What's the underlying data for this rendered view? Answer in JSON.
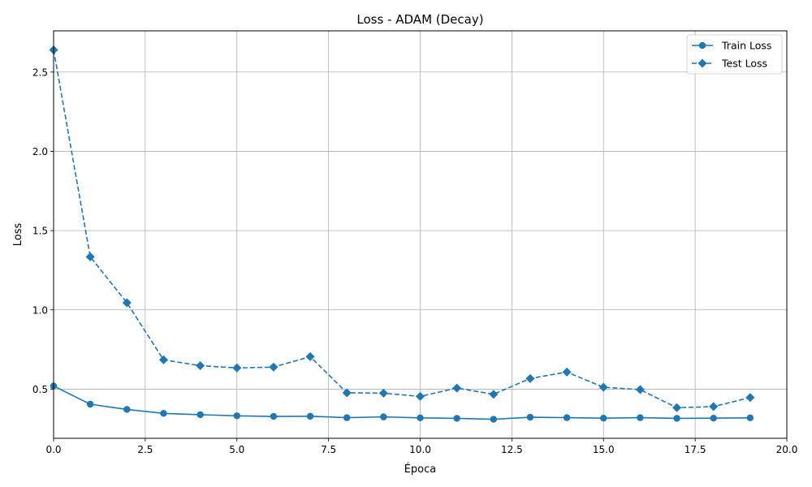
{
  "chart_data": {
    "type": "line",
    "title": "Loss - ADAM (Decay)",
    "xlabel": "Época",
    "ylabel": "Loss",
    "xlim": [
      0,
      20
    ],
    "ylim": [
      0.19,
      2.76
    ],
    "x_ticks": [
      "0.0",
      "2.5",
      "5.0",
      "7.5",
      "10.0",
      "12.5",
      "15.0",
      "17.5",
      "20.0"
    ],
    "y_ticks": [
      "0.5",
      "1.0",
      "1.5",
      "2.0",
      "2.5"
    ],
    "grid": true,
    "legend_position": "top-right",
    "x": [
      0,
      1,
      2,
      3,
      4,
      5,
      6,
      7,
      8,
      9,
      10,
      11,
      12,
      13,
      14,
      15,
      16,
      17,
      18,
      19
    ],
    "series": [
      {
        "name": "Train Loss",
        "line_style": "solid",
        "marker": "circle",
        "color": "#1f77b4",
        "values": [
          0.52,
          0.405,
          0.372,
          0.347,
          0.339,
          0.332,
          0.328,
          0.329,
          0.32,
          0.325,
          0.319,
          0.316,
          0.31,
          0.323,
          0.32,
          0.317,
          0.32,
          0.316,
          0.317,
          0.319
        ]
      },
      {
        "name": "Test Loss",
        "line_style": "dashed",
        "marker": "diamond",
        "color": "#1f77b4",
        "values": [
          2.64,
          1.335,
          1.045,
          0.685,
          0.648,
          0.634,
          0.639,
          0.705,
          0.477,
          0.475,
          0.454,
          0.507,
          0.468,
          0.567,
          0.608,
          0.512,
          0.497,
          0.383,
          0.39,
          0.447
        ]
      }
    ]
  }
}
